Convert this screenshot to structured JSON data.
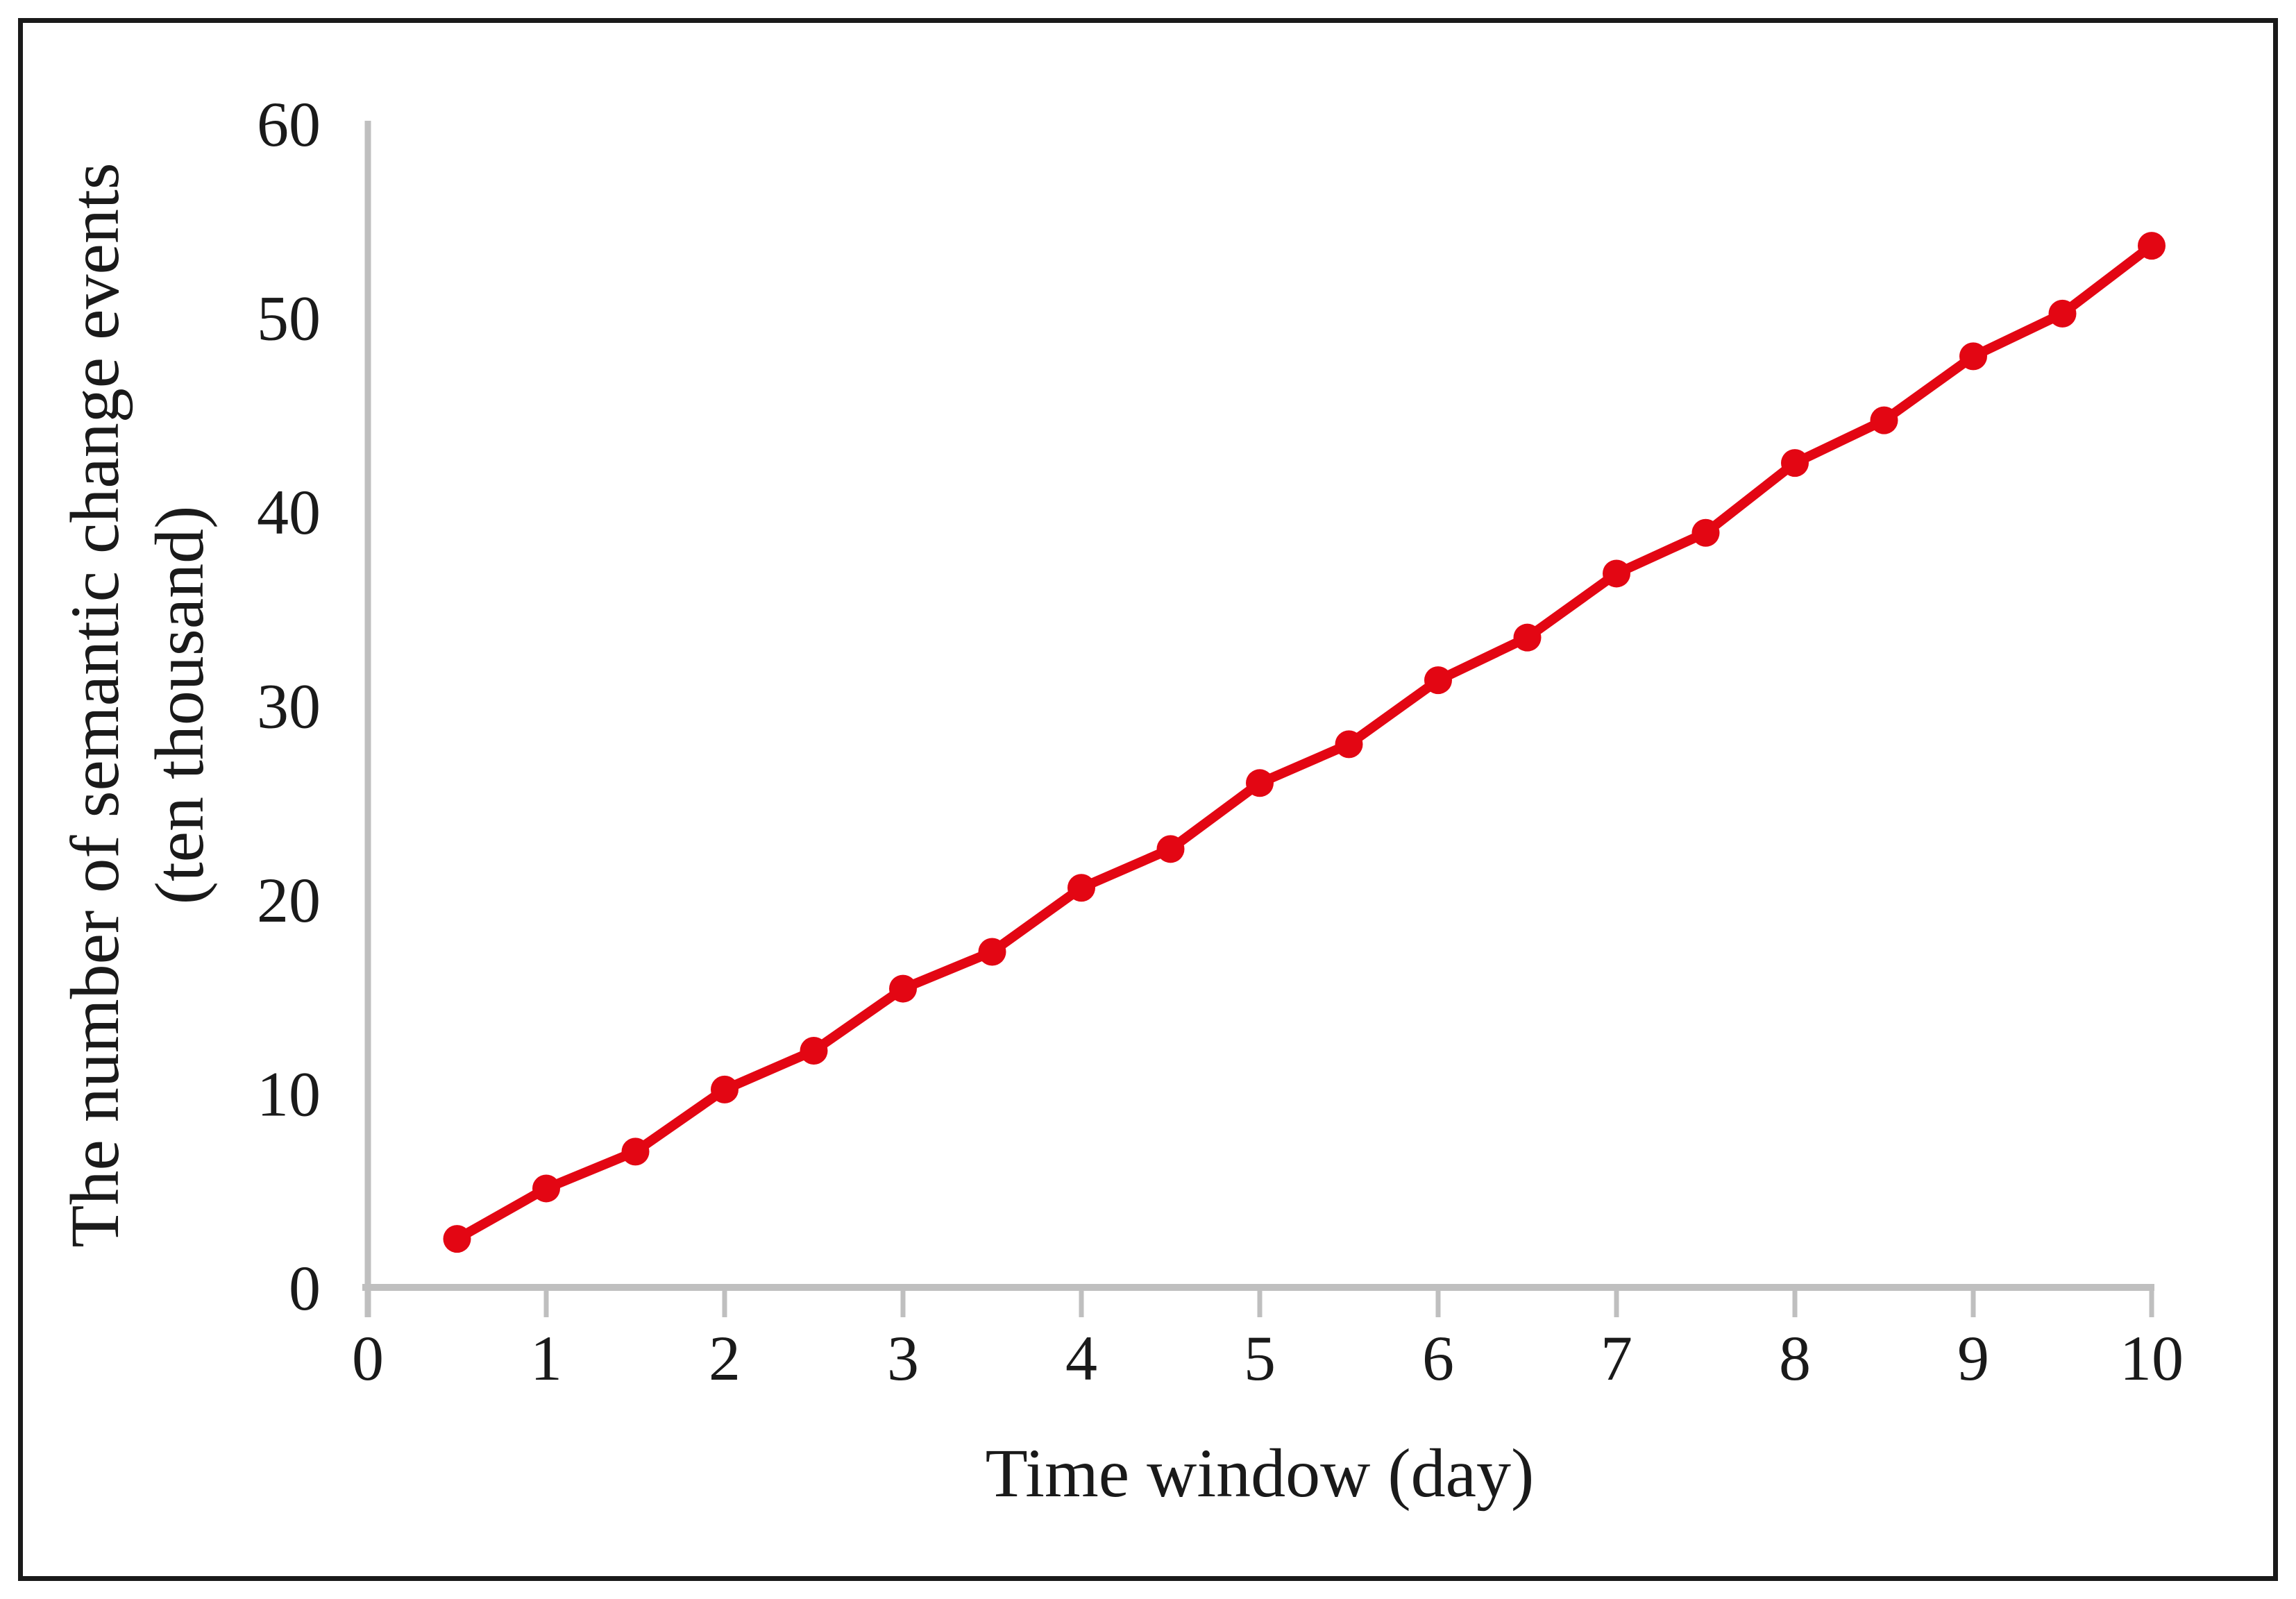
{
  "figure": {
    "background": "#ffffff",
    "border_color": "#1a1a1a"
  },
  "chart_data": {
    "type": "line",
    "title": "",
    "x": [
      0.5,
      1.0,
      1.5,
      2.0,
      2.5,
      3.0,
      3.5,
      4.0,
      4.5,
      5.0,
      5.5,
      6.0,
      6.5,
      7.0,
      7.5,
      8.0,
      8.5,
      9.0,
      9.5,
      10.0
    ],
    "values": [
      2.5,
      5.1,
      7.0,
      10.2,
      12.2,
      15.4,
      17.3,
      20.6,
      22.6,
      26.0,
      28.0,
      31.3,
      33.5,
      36.8,
      38.9,
      42.5,
      44.7,
      48.0,
      50.2,
      53.7
    ],
    "xlabel": "Time window (day)",
    "ylabel_line1": "The number of semantic change events",
    "ylabel_line2": "(ten thousand)",
    "xlim": [
      0,
      10
    ],
    "ylim": [
      0,
      60
    ],
    "xticks": [
      0,
      1,
      2,
      3,
      4,
      5,
      6,
      7,
      8,
      9,
      10
    ],
    "yticks": [
      0,
      10,
      20,
      30,
      40,
      50,
      60
    ],
    "grid": "off",
    "legend": "none",
    "line_color": "#e30613",
    "marker": "circle",
    "axis_color": "#bfbfbf"
  }
}
